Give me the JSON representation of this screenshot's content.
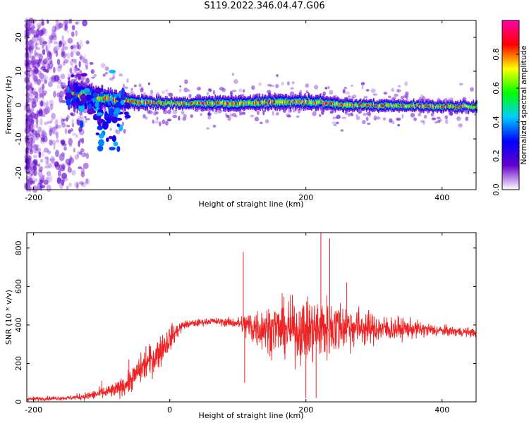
{
  "title": "S119.2022.346.04.47.G06",
  "colors": {
    "trace": "#ee2222",
    "axis": "#000000"
  },
  "chart_data": [
    {
      "type": "heatmap",
      "xlabel": "Height of straight line (km)",
      "ylabel": "Frequency (Hz)",
      "xlim": [
        -210,
        450
      ],
      "ylim": [
        -25,
        25
      ],
      "xticks": [
        -200,
        0,
        200,
        400
      ],
      "yticks": [
        -20,
        -10,
        0,
        10,
        20
      ],
      "colorbar": {
        "label": "Normalized spectral amplitude",
        "range": [
          0,
          1
        ],
        "ticks": [
          "0.0",
          "0.2",
          "0.4",
          "0.6",
          "0.8"
        ],
        "tick_values": [
          0,
          0.2,
          0.4,
          0.6,
          0.8
        ],
        "colormap": [
          "#ffffff",
          "#6600cc",
          "#0000ff",
          "#00ccff",
          "#00ff00",
          "#ffff00",
          "#ff0000",
          "#ff00aa"
        ]
      },
      "ridge": {
        "center_frequency_hz": [
          [
            -150,
            3
          ],
          [
            -100,
            2
          ],
          [
            -60,
            1
          ],
          [
            0,
            0.5
          ],
          [
            100,
            0.5
          ],
          [
            200,
            1
          ],
          [
            260,
            0
          ],
          [
            450,
            -0.5
          ]
        ],
        "halfwidth_hz": [
          [
            -150,
            4
          ],
          [
            -60,
            2
          ],
          [
            0,
            1.5
          ],
          [
            100,
            2
          ],
          [
            200,
            2
          ],
          [
            300,
            1.5
          ],
          [
            450,
            1.5
          ]
        ]
      }
    },
    {
      "type": "line",
      "xlabel": "Height of straight line (km)",
      "ylabel": "SNR (10 * v/v)",
      "xlim": [
        -210,
        450
      ],
      "ylim": [
        0,
        880
      ],
      "xticks": [
        -200,
        0,
        200,
        400
      ],
      "yticks": [
        0,
        200,
        400,
        600,
        800
      ],
      "envelope": {
        "x": [
          -210,
          -150,
          -120,
          -80,
          -60,
          -40,
          -20,
          0,
          20,
          60,
          100,
          120,
          160,
          200,
          220,
          260,
          300,
          350,
          400,
          450
        ],
        "mean": [
          15,
          20,
          30,
          60,
          100,
          180,
          240,
          330,
          400,
          420,
          410,
          390,
          380,
          370,
          380,
          395,
          380,
          380,
          370,
          360
        ],
        "spread": [
          10,
          10,
          20,
          35,
          50,
          70,
          80,
          60,
          20,
          15,
          25,
          90,
          120,
          150,
          160,
          110,
          70,
          45,
          25,
          20
        ]
      },
      "spikes": [
        [
          -100,
          110
        ],
        [
          -60,
          220
        ],
        [
          -35,
          290
        ],
        [
          108,
          780
        ],
        [
          110,
          100
        ],
        [
          200,
          20
        ],
        [
          215,
          20
        ],
        [
          222,
          880
        ],
        [
          235,
          850
        ],
        [
          260,
          620
        ],
        [
          450,
          380
        ]
      ]
    }
  ]
}
